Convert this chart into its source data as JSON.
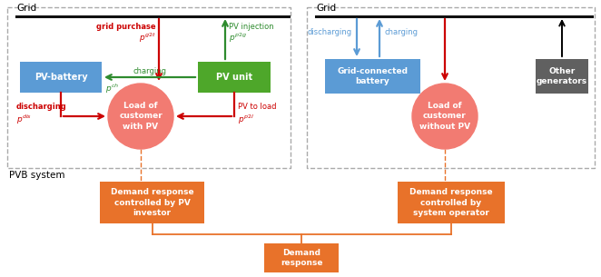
{
  "fig_width": 6.62,
  "fig_height": 3.05,
  "dpi": 100,
  "background": "#ffffff",
  "colors": {
    "red": "#cc0000",
    "green": "#2e8b2e",
    "orange": "#e8722a",
    "pink_circle": "#f27b72",
    "grid_line": "#111111",
    "dashed_box": "#aaaaaa",
    "light_blue": "#5b9bd5",
    "blue_box": "#5b9bd5",
    "green_box": "#4ea72a",
    "gray_box": "#606060"
  },
  "texts": {
    "grid_left": "Grid",
    "grid_right": "Grid",
    "pvb_system": "PVB system",
    "pv_battery": "PV-battery",
    "pv_unit": "PV unit",
    "load_with_pv": "Load of\ncustomer\nwith PV",
    "load_without_pv": "Load of\ncustomer\nwithout PV",
    "grid_connected_battery": "Grid-connected\nbattery",
    "other_generators": "Other\ngenerators",
    "grid_purchase": "grid purchase",
    "pv_injection": "PV injection",
    "charging_left": "charging",
    "discharging_left": "discharging",
    "pv_to_load": "PV to load",
    "discharging_right": "discharging",
    "charging_right": "charging",
    "dr_pv_investor": "Demand response\ncontrolled by PV\ninvestor",
    "dr_system_operator": "Demand response\ncontrolled by\nsystem operator",
    "demand_response": "Demand\nresponse"
  }
}
